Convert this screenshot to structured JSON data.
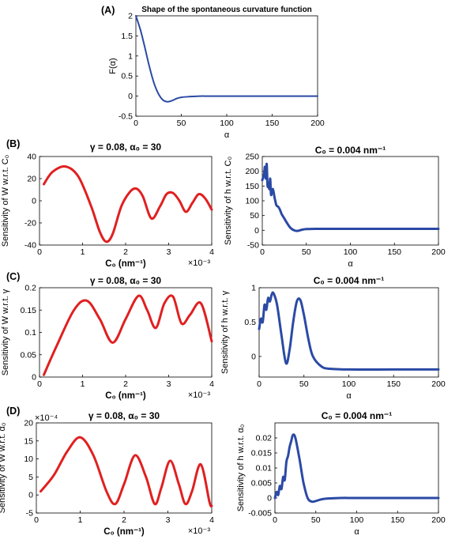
{
  "panel_labels": [
    "(A)",
    "(B)",
    "(C)",
    "(D)"
  ],
  "chart_data": [
    {
      "id": "A",
      "type": "line",
      "title": "Shape of the spontaneous curvature function",
      "xlabel": "α",
      "ylabel": "F(α)",
      "xlim": [
        0,
        200
      ],
      "ylim": [
        -0.5,
        2
      ],
      "xticks": [
        "0",
        "50",
        "100",
        "150",
        "200"
      ],
      "yticks": [
        "-0.5",
        "0",
        "0.5",
        "1",
        "1.5",
        "2"
      ],
      "exponent_label": "",
      "color": "#2b4aa5",
      "series": [
        {
          "x": [
            0,
            5,
            10,
            15,
            20,
            25,
            30,
            35,
            40,
            45,
            50,
            60,
            70,
            80,
            100,
            150,
            200
          ],
          "y": [
            2.0,
            1.65,
            1.2,
            0.72,
            0.32,
            0.05,
            -0.1,
            -0.14,
            -0.11,
            -0.06,
            -0.03,
            -0.01,
            0,
            0,
            0,
            0,
            0
          ]
        }
      ]
    },
    {
      "id": "B-left",
      "type": "line",
      "title": "γ = 0.08, α₀ = 30",
      "xlabel": "C₀ (nm⁻¹)",
      "ylabel": "Sensitivity of W  w.r.t. C₀",
      "xlim": [
        0,
        4
      ],
      "ylim": [
        -40,
        40
      ],
      "xticks": [
        "0",
        "1",
        "2",
        "3",
        "4"
      ],
      "yticks": [
        "-40",
        "-20",
        "0",
        "20",
        "40"
      ],
      "exponent_label": "×10⁻³",
      "color": "#e02020",
      "series": [
        {
          "x": [
            0.1,
            0.3,
            0.6,
            0.9,
            1.2,
            1.4,
            1.55,
            1.7,
            1.9,
            2.1,
            2.25,
            2.4,
            2.6,
            2.8,
            2.95,
            3.1,
            3.25,
            3.4,
            3.55,
            3.7,
            3.85,
            4.0
          ],
          "y": [
            15,
            26,
            31,
            22,
            -5,
            -28,
            -37,
            -30,
            -5,
            8,
            11,
            4,
            -16,
            -5,
            6,
            7,
            0,
            -10,
            -2,
            6,
            2,
            -8
          ]
        }
      ]
    },
    {
      "id": "B-right",
      "type": "line",
      "title": "C₀ = 0.004 nm⁻¹",
      "xlabel": "α",
      "ylabel": "Sensitivity of h w.r.t. C₀",
      "xlim": [
        0,
        200
      ],
      "ylim": [
        -50,
        250
      ],
      "xticks": [
        "0",
        "50",
        "100",
        "150",
        "200"
      ],
      "yticks": [
        "-50",
        "0",
        "50",
        "100",
        "150",
        "200",
        "250"
      ],
      "exponent_label": "",
      "color": "#2b4aa5",
      "series": [
        {
          "x": [
            0,
            2,
            3,
            4,
            5,
            6,
            7,
            8,
            9,
            10,
            12,
            14,
            16,
            18,
            20,
            22,
            25,
            28,
            32,
            36,
            40,
            45,
            50,
            60,
            80,
            100,
            150,
            200
          ],
          "y": [
            170,
            190,
            215,
            175,
            225,
            150,
            160,
            140,
            175,
            120,
            140,
            110,
            85,
            80,
            70,
            55,
            40,
            25,
            8,
            0,
            -2,
            2,
            4,
            5,
            5,
            5,
            5,
            5
          ]
        }
      ]
    },
    {
      "id": "C-left",
      "type": "line",
      "title": "γ = 0.08, α₀ = 30",
      "xlabel": "C₀ (nm⁻¹)",
      "ylabel": "Sensitivity of W  w.r.t. γ",
      "xlim": [
        0,
        4
      ],
      "ylim": [
        0,
        0.2
      ],
      "xticks": [
        "0",
        "1",
        "2",
        "3",
        "4"
      ],
      "yticks": [
        "0",
        "0.05",
        "0.1",
        "0.15",
        "0.2"
      ],
      "exponent_label": "×10⁻³",
      "color": "#e02020",
      "series": [
        {
          "x": [
            0.1,
            0.4,
            0.8,
            1.1,
            1.4,
            1.7,
            2.0,
            2.3,
            2.5,
            2.7,
            2.9,
            3.1,
            3.3,
            3.5,
            3.75,
            4.0
          ],
          "y": [
            0.005,
            0.07,
            0.15,
            0.171,
            0.13,
            0.077,
            0.13,
            0.182,
            0.15,
            0.11,
            0.165,
            0.18,
            0.12,
            0.14,
            0.165,
            0.08
          ]
        }
      ]
    },
    {
      "id": "C-right",
      "type": "line",
      "title": "C₀ = 0.004 nm⁻¹",
      "xlabel": "α",
      "ylabel": "Sensitivity of h w.r.t. γ",
      "xlim": [
        0,
        200
      ],
      "ylim": [
        -0.3,
        1
      ],
      "xticks": [
        "0",
        "50",
        "100",
        "150",
        "200"
      ],
      "yticks": [
        "0",
        "0.5",
        "1"
      ],
      "exponent_label": "",
      "color": "#2b4aa5",
      "series": [
        {
          "x": [
            0,
            2,
            4,
            6,
            8,
            10,
            12,
            14,
            16,
            20,
            25,
            30,
            34,
            38,
            42,
            46,
            50,
            55,
            60,
            70,
            80,
            100,
            150,
            200
          ],
          "y": [
            0.4,
            0.55,
            0.5,
            0.75,
            0.68,
            0.85,
            0.8,
            0.9,
            0.92,
            0.75,
            0.3,
            -0.1,
            0.1,
            0.5,
            0.8,
            0.82,
            0.6,
            0.25,
            0.0,
            -0.15,
            -0.18,
            -0.19,
            -0.19,
            -0.19
          ]
        }
      ]
    },
    {
      "id": "D-left",
      "type": "line",
      "title": "γ = 0.08, α₀ = 30",
      "xlabel": "C₀ (nm⁻¹)",
      "ylabel": "Sensitivity of W  w.r.t. α₀",
      "xlim": [
        0,
        4
      ],
      "ylim": [
        -5,
        20
      ],
      "xticks": [
        "0",
        "1",
        "2",
        "3",
        "4"
      ],
      "yticks": [
        "-5",
        "0",
        "5",
        "10",
        "15",
        "20"
      ],
      "exponent_label_y": "×10⁻⁴",
      "exponent_label": "×10⁻³",
      "color": "#e02020",
      "series": [
        {
          "x": [
            0.1,
            0.4,
            0.7,
            1.0,
            1.3,
            1.6,
            1.8,
            2.0,
            2.25,
            2.5,
            2.7,
            2.85,
            3.05,
            3.25,
            3.4,
            3.55,
            3.75,
            3.95,
            4.0
          ],
          "y": [
            1,
            5.5,
            12,
            16,
            11,
            1,
            -2.5,
            3,
            11,
            5,
            -2.5,
            2,
            9.5,
            3,
            -2.5,
            1,
            8.5,
            -2,
            -3
          ]
        }
      ]
    },
    {
      "id": "D-right",
      "type": "line",
      "title": "C₀ = 0.004 nm⁻¹",
      "xlabel": "α",
      "ylabel": "Sensitivity of h w.r.t. α₀",
      "xlim": [
        0,
        200
      ],
      "ylim": [
        -0.005,
        0.025
      ],
      "xticks": [
        "0",
        "50",
        "100",
        "150",
        "200"
      ],
      "yticks": [
        "-0.005",
        "0",
        "0.005",
        "0.01",
        "0.015",
        "0.02"
      ],
      "exponent_label": "",
      "color": "#2b4aa5",
      "series": [
        {
          "x": [
            0,
            2,
            4,
            6,
            8,
            10,
            12,
            14,
            16,
            18,
            20,
            22,
            25,
            30,
            35,
            40,
            45,
            50,
            60,
            80,
            100,
            150,
            200
          ],
          "y": [
            0,
            0.002,
            0.001,
            0.004,
            0.003,
            0.007,
            0.006,
            0.012,
            0.014,
            0.017,
            0.019,
            0.021,
            0.02,
            0.013,
            0.005,
            0.0,
            -0.0012,
            -0.001,
            -0.0003,
            0,
            0,
            0,
            0
          ]
        }
      ]
    }
  ]
}
